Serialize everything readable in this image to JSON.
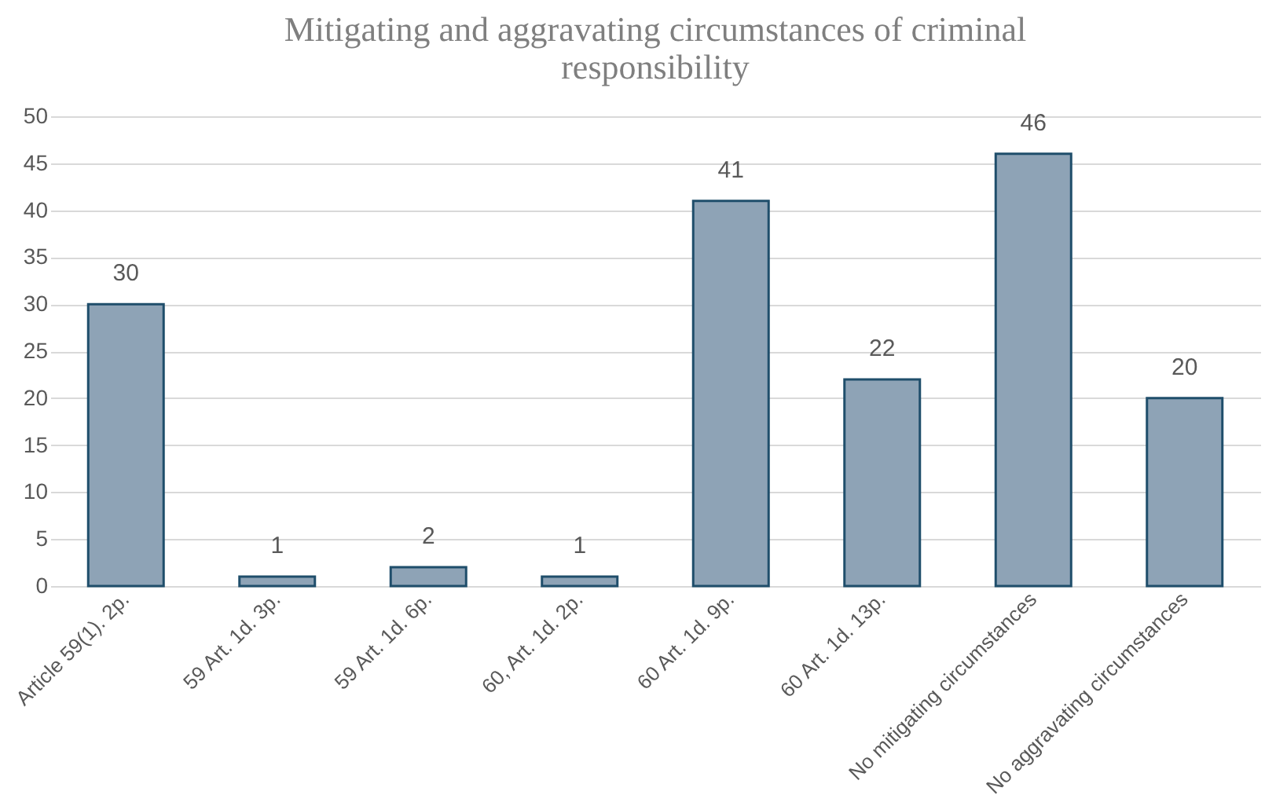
{
  "chart_data": {
    "type": "bar",
    "title": "Mitigating and aggravating circumstances of criminal responsibility",
    "categories": [
      "Article 59(1). 2p.",
      "59 Art. 1d. 3p.",
      "59 Art. 1d. 6p.",
      "60, Art. 1d. 2p.",
      "60 Art. 1d. 9p.",
      "60 Art. 1d. 13p.",
      "No mitigating circumstances",
      "No aggravating circumstances"
    ],
    "values": [
      30,
      1,
      2,
      1,
      41,
      22,
      46,
      20
    ],
    "color": "#8ea3b6",
    "ylim": [
      0,
      50
    ],
    "yticks": [
      0,
      5,
      10,
      15,
      20,
      25,
      30,
      35,
      40,
      45,
      50
    ],
    "grid": "y",
    "data_labels": true
  }
}
